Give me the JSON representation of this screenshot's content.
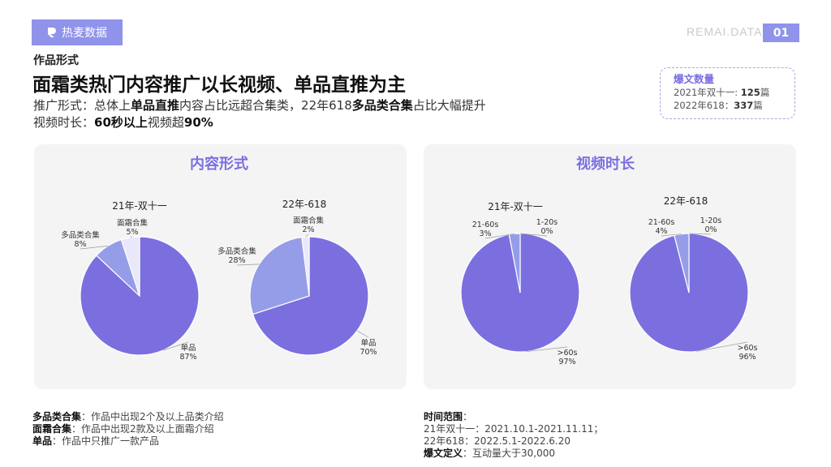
{
  "header": {
    "brand_label": "热麦数据",
    "site_label": "REMAI.DATA",
    "page_number": "01",
    "section": "作品形式",
    "headline": "面霜类热门内容推广以长视频、单品直推为主",
    "sub1": {
      "a": "推广形式：总体上",
      "b": "单品直推",
      "c": "内容占比远超合集类，22年618",
      "d": "多品类合集",
      "e": "占比大幅提升"
    },
    "sub2": {
      "a": "视频时长：",
      "b": "60秒以上",
      "c": "视频超",
      "d": "90%"
    }
  },
  "count_box": {
    "title": "爆文数量",
    "line1_prefix": "2021年双十一: ",
    "line1_value": "125",
    "line1_unit": "篇",
    "line2_prefix": "2022年618：",
    "line2_value": "337",
    "line2_unit": "篇"
  },
  "panels": {
    "left_title": "内容形式",
    "right_title": "视频时长"
  },
  "colors": {
    "dark": "#7b6fe0",
    "mid": "#969de8",
    "light": "#e8e8fa",
    "accent": "#8f93ea"
  },
  "chart_data": [
    {
      "type": "pie",
      "title": "21年-双十一",
      "slices": [
        {
          "label": "单品",
          "pct_label": "87%",
          "value": 87
        },
        {
          "label": "多品类合集",
          "pct_label": "8%",
          "value": 8
        },
        {
          "label": "面霜合集",
          "pct_label": "5%",
          "value": 5
        }
      ]
    },
    {
      "type": "pie",
      "title": "22年-618",
      "slices": [
        {
          "label": "单品",
          "pct_label": "70%",
          "value": 70
        },
        {
          "label": "多品类合集",
          "pct_label": "28%",
          "value": 28
        },
        {
          "label": "面霜合集",
          "pct_label": "2%",
          "value": 2
        }
      ]
    },
    {
      "type": "pie",
      "title": "21年-双十一",
      "slices": [
        {
          "label": ">60s",
          "pct_label": "97%",
          "value": 97
        },
        {
          "label": "21-60s",
          "pct_label": "3%",
          "value": 3
        },
        {
          "label": "1-20s",
          "pct_label": "0%",
          "value": 0
        }
      ]
    },
    {
      "type": "pie",
      "title": "22年-618",
      "slices": [
        {
          "label": ">60s",
          "pct_label": "96%",
          "value": 96
        },
        {
          "label": "21-60s",
          "pct_label": "4%",
          "value": 4
        },
        {
          "label": "1-20s",
          "pct_label": "0%",
          "value": 0
        }
      ]
    }
  ],
  "footer_left": [
    {
      "term": "多品类合集",
      "desc": "：作品中出现2个及以上品类介绍"
    },
    {
      "term": "面霜合集",
      "desc": "：作品中出现2款及以上面霜介绍"
    },
    {
      "term": "单品",
      "desc": "：作品中只推广一款产品"
    }
  ],
  "footer_right": {
    "range_label": "时间范围",
    "range_colon": "：",
    "line1": "21年双十一：2021.10.1-2021.11.11；",
    "line2": "22年618：2022.5.1-2022.6.20",
    "def_label": "爆文定义",
    "def_text": "：互动量大于30,000"
  }
}
